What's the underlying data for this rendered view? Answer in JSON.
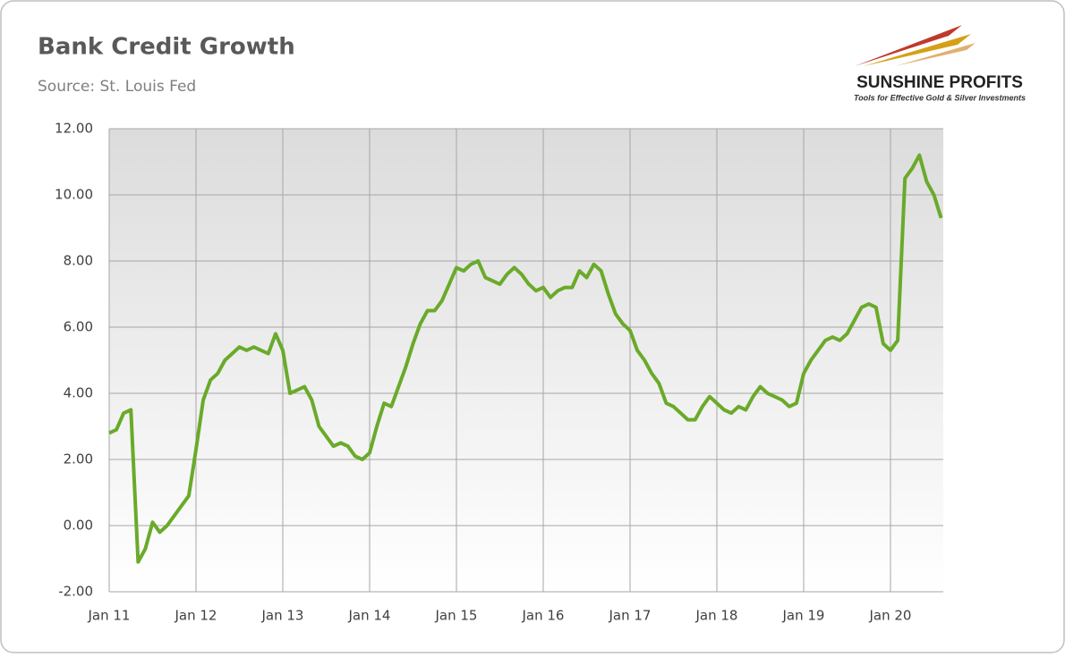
{
  "chart_data": {
    "type": "line",
    "title": "Bank Credit Growth",
    "subtitle": "Source: St. Louis Fed",
    "logo": {
      "name": "SUNSHINE PROFITS",
      "tagline": "Tools for Effective Gold & Silver Investments"
    },
    "categories": [
      "Jan 11",
      null,
      null,
      null,
      null,
      null,
      null,
      null,
      null,
      null,
      null,
      null,
      "Jan 12",
      null,
      null,
      null,
      null,
      null,
      null,
      null,
      null,
      null,
      null,
      null,
      "Jan 13",
      null,
      null,
      null,
      null,
      null,
      null,
      null,
      null,
      null,
      null,
      null,
      "Jan 14",
      null,
      null,
      null,
      null,
      null,
      null,
      null,
      null,
      null,
      null,
      null,
      "Jan 15",
      null,
      null,
      null,
      null,
      null,
      null,
      null,
      null,
      null,
      null,
      null,
      "Jan 16",
      null,
      null,
      null,
      null,
      null,
      null,
      null,
      null,
      null,
      null,
      null,
      "Jan 17",
      null,
      null,
      null,
      null,
      null,
      null,
      null,
      null,
      null,
      null,
      null,
      "Jan 18",
      null,
      null,
      null,
      null,
      null,
      null,
      null,
      null,
      null,
      null,
      null,
      "Jan 19",
      null,
      null,
      null,
      null,
      null,
      null,
      null,
      null,
      null,
      null,
      null,
      "Jan 20",
      null,
      null,
      null,
      null,
      null,
      null,
      null
    ],
    "series": [
      {
        "name": "Bank Credit Growth",
        "color": "#6aaa2a",
        "values": [
          2.8,
          2.9,
          3.4,
          3.5,
          -1.1,
          -0.7,
          0.1,
          -0.2,
          0.0,
          0.3,
          0.6,
          0.9,
          2.3,
          3.8,
          4.4,
          4.6,
          5.0,
          5.2,
          5.4,
          5.3,
          5.4,
          5.3,
          5.2,
          5.8,
          5.3,
          4.0,
          4.1,
          4.2,
          3.8,
          3.0,
          2.7,
          2.4,
          2.5,
          2.4,
          2.1,
          2.0,
          2.2,
          3.0,
          3.7,
          3.6,
          4.2,
          4.8,
          5.5,
          6.1,
          6.5,
          6.5,
          6.8,
          7.3,
          7.8,
          7.7,
          7.9,
          8.0,
          7.5,
          7.4,
          7.3,
          7.6,
          7.8,
          7.6,
          7.3,
          7.1,
          7.2,
          6.9,
          7.1,
          7.2,
          7.2,
          7.7,
          7.5,
          7.9,
          7.7,
          7.0,
          6.4,
          6.1,
          5.9,
          5.3,
          5.0,
          4.6,
          4.3,
          3.7,
          3.6,
          3.4,
          3.2,
          3.2,
          3.6,
          3.9,
          3.7,
          3.5,
          3.4,
          3.6,
          3.5,
          3.9,
          4.2,
          4.0,
          3.9,
          3.8,
          3.6,
          3.7,
          4.6,
          5.0,
          5.3,
          5.6,
          5.7,
          5.6,
          5.8,
          6.2,
          6.6,
          6.7,
          6.6,
          5.5,
          5.3,
          5.6,
          10.5,
          10.8,
          11.2,
          10.4,
          10.0,
          9.3
        ]
      }
    ],
    "ylim": [
      -2,
      12
    ],
    "yticks": [
      {
        "value": -2,
        "label": "-2.00"
      },
      {
        "value": 0,
        "label": "0.00"
      },
      {
        "value": 2,
        "label": "2.00"
      },
      {
        "value": 4,
        "label": "4.00"
      },
      {
        "value": 6,
        "label": "6.00"
      },
      {
        "value": 8,
        "label": "8.00"
      },
      {
        "value": 10,
        "label": "10.00"
      },
      {
        "value": 12,
        "label": "12.00"
      }
    ],
    "grid": true
  }
}
